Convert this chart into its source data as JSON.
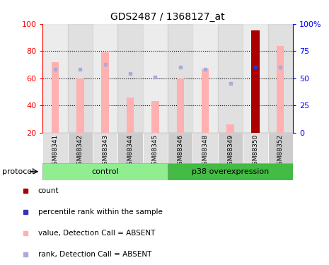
{
  "title": "GDS2487 / 1368127_at",
  "samples": [
    "GSM88341",
    "GSM88342",
    "GSM88343",
    "GSM88344",
    "GSM88345",
    "GSM88346",
    "GSM88348",
    "GSM88349",
    "GSM88350",
    "GSM88352"
  ],
  "value_bars": [
    72,
    60,
    79,
    46,
    43,
    60,
    67,
    26,
    95,
    84
  ],
  "rank_dots": [
    58,
    58,
    63,
    54,
    51,
    60,
    58,
    45,
    60,
    60
  ],
  "count_bar_index": 8,
  "ylim_left": [
    20,
    100
  ],
  "yticks_left": [
    20,
    40,
    60,
    80,
    100
  ],
  "yticks_right": [
    0,
    25,
    50,
    75,
    100
  ],
  "ytick_labels_right": [
    "0",
    "25",
    "50",
    "75",
    "100%"
  ],
  "control_count": 5,
  "p38_count": 5,
  "control_label": "control",
  "p38_label": "p38 overexpression",
  "control_color_light": "#C8F0C8",
  "control_color_dark": "#70DD70",
  "p38_color_light": "#50CC50",
  "p38_color_dark": "#28AA28",
  "bar_color_pink": "#FFB0B0",
  "bar_color_red": "#AA0000",
  "dot_color_blue": "#AAAADD",
  "dot_color_darkblue": "#3333BB",
  "legend_colors": [
    "#AA0000",
    "#3333BB",
    "#FFB0B0",
    "#AAAADD"
  ],
  "legend_labels": [
    "count",
    "percentile rank within the sample",
    "value, Detection Call = ABSENT",
    "rank, Detection Call = ABSENT"
  ],
  "col_bg_even": "#E0E0E0",
  "col_bg_odd": "#CCCCCC",
  "bar_width": 0.3
}
